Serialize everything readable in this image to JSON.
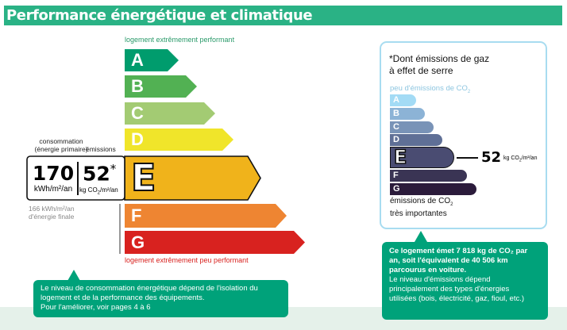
{
  "header": {
    "title": "Performance énergétique et climatique"
  },
  "energy": {
    "top_label": "logement extrêmement performant",
    "bottom_label": "logement extrêmement peu performant",
    "classes": [
      {
        "letter": "A",
        "color": "#009c6d"
      },
      {
        "letter": "B",
        "color": "#52b153"
      },
      {
        "letter": "C",
        "color": "#a3cb73"
      },
      {
        "letter": "D",
        "color": "#f0e52a"
      },
      {
        "letter": "E",
        "color": "#f0b31b"
      },
      {
        "letter": "F",
        "color": "#ee8532"
      },
      {
        "letter": "G",
        "color": "#d8221f"
      }
    ],
    "current_class": "E",
    "consumption_label": "consommation",
    "consumption_sub": "(énergie primaire)",
    "emissions_label": "émissions",
    "consumption_value": "170",
    "consumption_unit": "kWh/m²/an",
    "emissions_value": "52",
    "emissions_star": "*",
    "emissions_unit_a": "kg CO",
    "emissions_unit_sub": "2",
    "emissions_unit_b": "/m²/an",
    "final_energy_1": "166 kWh/m²/an",
    "final_energy_2": "d'énergie finale"
  },
  "ghg": {
    "title_1": "*Dont émissions de gaz",
    "title_2": "à effet de serre",
    "top_label": "peu d'émissions de CO",
    "top_sub": "2",
    "classes": [
      {
        "letter": "A",
        "color": "#a3dbf5"
      },
      {
        "letter": "B",
        "color": "#8cb3d6"
      },
      {
        "letter": "C",
        "color": "#7993b7"
      },
      {
        "letter": "D",
        "color": "#5f6f96"
      },
      {
        "letter": "E",
        "color": "#4a4c72"
      },
      {
        "letter": "F",
        "color": "#3a3454"
      },
      {
        "letter": "G",
        "color": "#2b1b3b"
      }
    ],
    "current_class": "E",
    "value": "52",
    "unit_a": "kg CO",
    "unit_sub": "2",
    "unit_b": "/m²/an",
    "bottom_1": "émissions de CO",
    "bottom_sub": "2",
    "bottom_2": "très importantes"
  },
  "callout_left": {
    "line1": "Le niveau de consommation énergétique dépend de l'isolation du",
    "line2": "logement et de la performance des équipements.",
    "line3": "Pour l'améliorer, voir pages 4 à 6"
  },
  "callout_right": {
    "bold1": "Ce logement émet 7 818 kg de CO₂ par",
    "bold2": "an, soit l'équivalent de 40 506 km",
    "bold3": "parcourus en voiture.",
    "line1": "Le niveau d'émissions dépend",
    "line2": "principalement des types d'énergies",
    "line3": "utilisées (bois, électricité, gaz, fioul, etc.)"
  }
}
